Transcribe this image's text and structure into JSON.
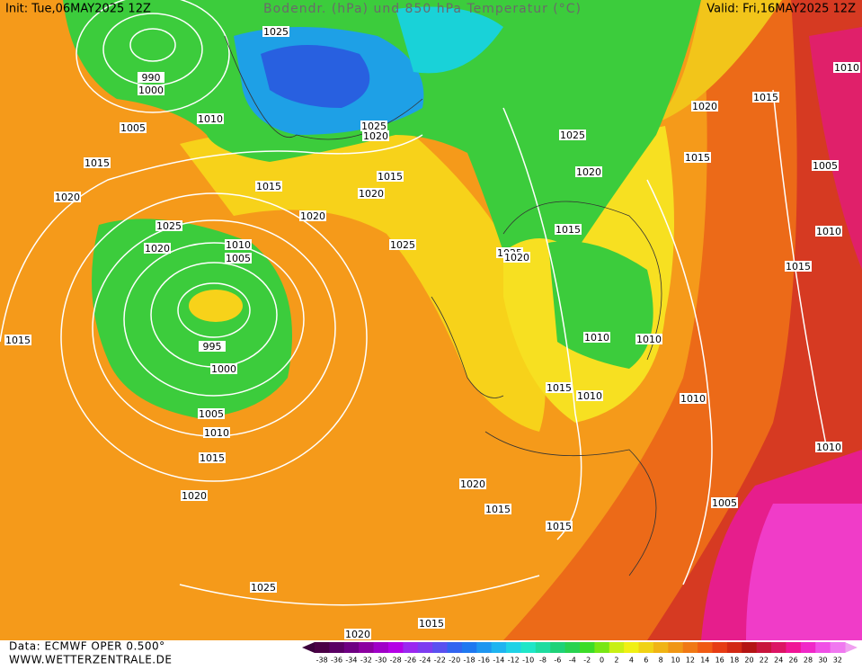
{
  "header": {
    "init": "Init: Tue,06MAY2025 12Z",
    "title": "Bodendr. (hPa) und 850 hPa Temperatur (°C)",
    "valid": "Valid: Fri,16MAY2025 12Z"
  },
  "isobar_labels": [
    "1025",
    "990",
    "1000",
    "1010",
    "1005",
    "1015",
    "1020",
    "1025",
    "1020",
    "1010",
    "1005",
    "1015",
    "1020",
    "1025",
    "1020",
    "1015",
    "1020",
    "1025",
    "995",
    "1000",
    "1005",
    "1010",
    "1015",
    "1020",
    "1025",
    "1020",
    "1015",
    "1020",
    "1015",
    "1015",
    "1015",
    "1010",
    "1010",
    "1010",
    "1010",
    "1005",
    "1010",
    "1015",
    "1010",
    "1005",
    "1015",
    "1020",
    "1015",
    "1010",
    "1025",
    "1020",
    "1015",
    "1025",
    "1020",
    "1015"
  ],
  "footer": {
    "data": "Data: ECMWF OPER 0.500°",
    "site": "WWW.WETTERZENTRALE.DE"
  },
  "scale": {
    "labels": [
      -38,
      -36,
      -34,
      -32,
      -30,
      -28,
      -26,
      -24,
      -22,
      -20,
      -18,
      -16,
      -14,
      -12,
      -10,
      -8,
      -6,
      -4,
      -2,
      0,
      2,
      4,
      6,
      8,
      10,
      12,
      14,
      16,
      18,
      20,
      22,
      24,
      26,
      28,
      30,
      32
    ]
  }
}
